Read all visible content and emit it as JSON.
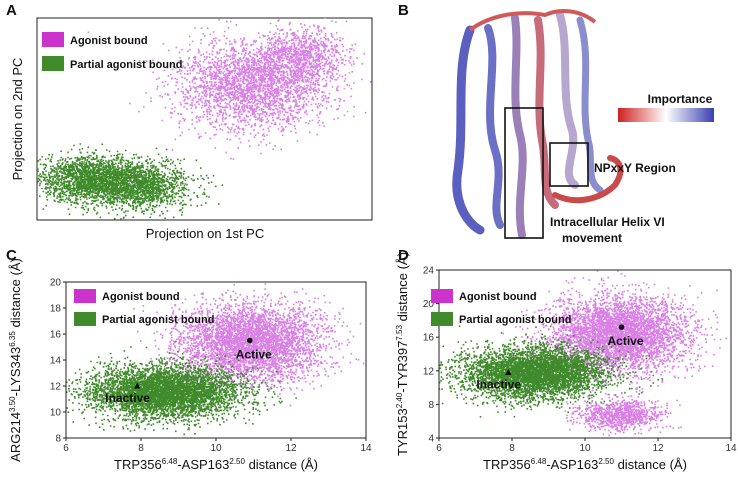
{
  "panels": {
    "A": "A",
    "B": "B",
    "C": "C",
    "D": "D"
  },
  "colors": {
    "agonist": "#d97fe6",
    "partial": "#3f8a2a",
    "agonist_swatch": "#cc33cc",
    "partial_swatch": "#3f8a2a"
  },
  "legend": {
    "agonist": "Agonist bound",
    "partial": "Partial agonist bound"
  },
  "panelB": {
    "importance_label": "Importance",
    "npxxy_label": "NPxxY Region",
    "helix_label_line1": "Intracellular Helix VI",
    "helix_label_line2": "movement"
  },
  "chart_data": [
    {
      "type": "scatter",
      "panel": "A",
      "xlabel": "Projection on 1st PC",
      "ylabel": "Projection on 2nd PC",
      "series": [
        {
          "name": "Agonist bound",
          "color": "#d97fe6",
          "note_clusters": [
            "main",
            "upper-right"
          ]
        },
        {
          "name": "Partial agonist bound",
          "color": "#3f8a2a",
          "note_clusters": [
            "left",
            "right"
          ]
        }
      ]
    },
    {
      "type": "scatter",
      "panel": "C",
      "xlabel_parts": [
        "TRP356",
        "6.48",
        "-ASP163",
        "2.50",
        " distance (Å)"
      ],
      "ylabel_parts": [
        "ARG214",
        "3.50",
        "-LYS343",
        "6.35",
        " distance (Å)"
      ],
      "xlim": [
        6,
        14
      ],
      "ylim": [
        8,
        20
      ],
      "xticks": [
        6,
        8,
        10,
        12,
        14
      ],
      "yticks": [
        8,
        10,
        12,
        14,
        16,
        18,
        20
      ],
      "series": [
        {
          "name": "Agonist bound",
          "color": "#d97fe6",
          "center": [
            10.9,
            15.4
          ],
          "spread": [
            0.95,
            1.5
          ]
        },
        {
          "name": "Partial agonist bound",
          "color": "#3f8a2a",
          "center": [
            8.6,
            11.6
          ],
          "spread": [
            1.0,
            1.0
          ]
        }
      ],
      "annotations": [
        {
          "text": "Active",
          "x": 10.9,
          "y": 15.5,
          "marker": "circle"
        },
        {
          "text": "Inactive",
          "x": 7.9,
          "y": 12.0,
          "marker": "triangle"
        }
      ]
    },
    {
      "type": "scatter",
      "panel": "D",
      "xlabel_parts": [
        "TRP356",
        "6.48",
        "-ASP163",
        "2.50",
        " distance (Å)"
      ],
      "ylabel_parts": [
        "TYR153",
        "2.40",
        "-TYR397",
        "7.53",
        " distance (Å)"
      ],
      "xlim": [
        6,
        14
      ],
      "ylim": [
        4,
        24
      ],
      "xticks": [
        6,
        8,
        10,
        12,
        14
      ],
      "yticks": [
        4,
        8,
        12,
        16,
        20,
        24
      ],
      "series": [
        {
          "name": "Agonist bound",
          "color": "#d97fe6",
          "center": [
            10.9,
            16.5
          ],
          "spread": [
            0.95,
            2.2
          ]
        },
        {
          "name": "Partial agonist bound",
          "color": "#3f8a2a",
          "center": [
            8.6,
            11.8
          ],
          "spread": [
            0.95,
            1.5
          ]
        }
      ],
      "annotations": [
        {
          "text": "Active",
          "x": 11.0,
          "y": 17.2,
          "marker": "circle"
        },
        {
          "text": "Inactive",
          "x": 7.9,
          "y": 11.8,
          "marker": "triangle"
        }
      ]
    }
  ]
}
